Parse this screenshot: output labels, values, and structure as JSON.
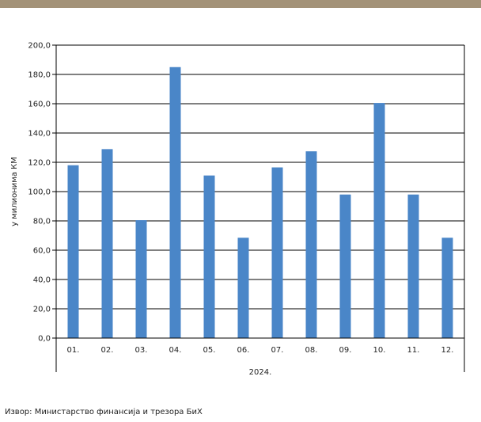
{
  "colors": {
    "band": "#a39278",
    "bar": "#4a86c8",
    "grid": "#000000",
    "text": "#222222"
  },
  "source_text": "Извор:  Министарство финансија и трезора  БиХ",
  "chart_data": {
    "type": "bar",
    "ylabel": "у милионима КМ",
    "group_label": "2024.",
    "ylim": [
      0,
      200
    ],
    "y_ticks": [
      "0,0",
      "20,0",
      "40,0",
      "60,0",
      "80,0",
      "100,0",
      "120,0",
      "140,0",
      "160,0",
      "180,0",
      "200,0"
    ],
    "grid": true,
    "categories": [
      "01.",
      "02.",
      "03.",
      "04.",
      "05.",
      "06.",
      "07.",
      "08.",
      "09.",
      "10.",
      "11.",
      "12."
    ],
    "values": [
      118,
      129,
      80.5,
      185,
      111,
      68.5,
      116.5,
      127.5,
      98,
      160.5,
      98,
      68.5
    ]
  }
}
